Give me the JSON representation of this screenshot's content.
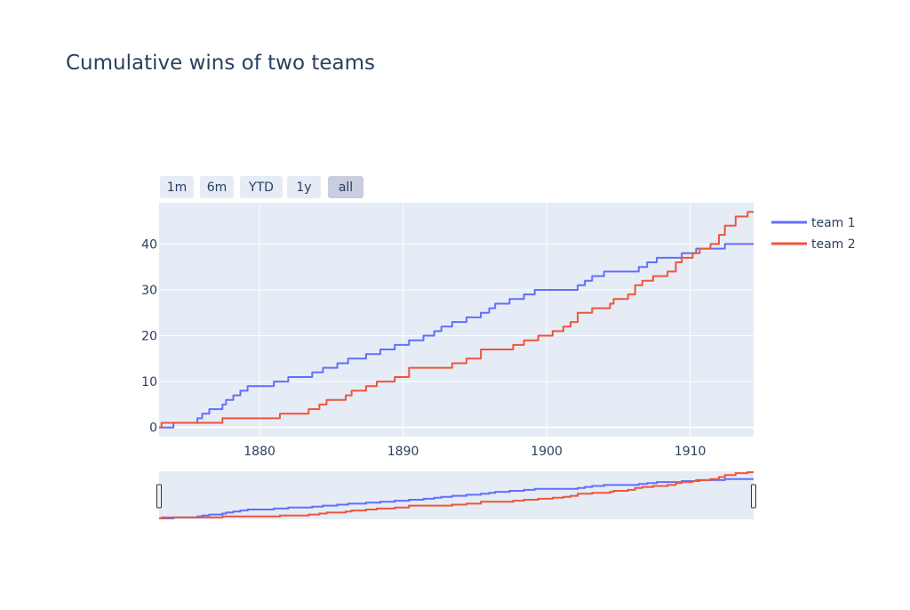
{
  "title": "Cumulative wins of two teams",
  "range_buttons": [
    {
      "label": "1m",
      "active": false
    },
    {
      "label": "6m",
      "active": false
    },
    {
      "label": "YTD",
      "active": false
    },
    {
      "label": "1y",
      "active": false
    },
    {
      "label": "all",
      "active": true
    }
  ],
  "colors": {
    "plot_bg": "#e5ecf6",
    "grid": "#ffffff",
    "text": "#2a3f5f",
    "button_bg": "#e5ecf6",
    "button_active_bg": "#c8cde0"
  },
  "chart_data": {
    "type": "line",
    "line_shape": "step",
    "xaxis": {
      "type": "date",
      "range": [
        "1873-01-01",
        "1914-06-01"
      ],
      "ticks": [
        "1880",
        "1890",
        "1900",
        "1910"
      ]
    },
    "yaxis": {
      "range": [
        -2,
        49
      ],
      "ticks": [
        0,
        10,
        20,
        30,
        40
      ]
    },
    "grid": true,
    "legend_position": "top-right",
    "rangeslider": true,
    "series": [
      {
        "name": "team 1",
        "color": "#636efa",
        "points": [
          [
            "1873-01",
            0
          ],
          [
            "1874-01",
            1
          ],
          [
            "1875-03",
            1
          ],
          [
            "1875-09",
            2
          ],
          [
            "1876-01",
            3
          ],
          [
            "1876-07",
            4
          ],
          [
            "1877-06",
            5
          ],
          [
            "1877-09",
            6
          ],
          [
            "1878-03",
            7
          ],
          [
            "1878-09",
            8
          ],
          [
            "1879-03",
            9
          ],
          [
            "1880-06",
            9
          ],
          [
            "1881-01",
            10
          ],
          [
            "1882-01",
            11
          ],
          [
            "1883-09",
            12
          ],
          [
            "1884-06",
            13
          ],
          [
            "1885-06",
            14
          ],
          [
            "1886-03",
            15
          ],
          [
            "1887-06",
            16
          ],
          [
            "1888-06",
            17
          ],
          [
            "1889-06",
            18
          ],
          [
            "1890-06",
            19
          ],
          [
            "1891-06",
            20
          ],
          [
            "1892-03",
            21
          ],
          [
            "1892-09",
            22
          ],
          [
            "1893-06",
            23
          ],
          [
            "1894-06",
            24
          ],
          [
            "1895-06",
            25
          ],
          [
            "1896-01",
            26
          ],
          [
            "1896-06",
            27
          ],
          [
            "1897-06",
            28
          ],
          [
            "1898-06",
            29
          ],
          [
            "1899-03",
            30
          ],
          [
            "1902-03",
            31
          ],
          [
            "1902-09",
            32
          ],
          [
            "1903-03",
            33
          ],
          [
            "1904-01",
            34
          ],
          [
            "1906-06",
            35
          ],
          [
            "1907-01",
            36
          ],
          [
            "1907-09",
            37
          ],
          [
            "1909-06",
            38
          ],
          [
            "1910-06",
            39
          ],
          [
            "1912-06",
            40
          ],
          [
            "1914-06",
            40
          ]
        ]
      },
      {
        "name": "team 2",
        "color": "#ef553b",
        "points": [
          [
            "1873-01",
            0
          ],
          [
            "1873-03",
            1
          ],
          [
            "1877-06",
            2
          ],
          [
            "1881-06",
            3
          ],
          [
            "1883-06",
            4
          ],
          [
            "1884-03",
            5
          ],
          [
            "1884-09",
            6
          ],
          [
            "1886-01",
            7
          ],
          [
            "1886-06",
            8
          ],
          [
            "1887-06",
            9
          ],
          [
            "1888-03",
            10
          ],
          [
            "1889-06",
            11
          ],
          [
            "1890-06",
            13
          ],
          [
            "1893-06",
            14
          ],
          [
            "1894-06",
            15
          ],
          [
            "1895-06",
            17
          ],
          [
            "1897-09",
            18
          ],
          [
            "1898-06",
            19
          ],
          [
            "1899-06",
            20
          ],
          [
            "1900-06",
            21
          ],
          [
            "1901-03",
            22
          ],
          [
            "1901-09",
            23
          ],
          [
            "1902-03",
            25
          ],
          [
            "1903-03",
            26
          ],
          [
            "1904-06",
            27
          ],
          [
            "1904-09",
            28
          ],
          [
            "1905-09",
            29
          ],
          [
            "1906-03",
            31
          ],
          [
            "1906-09",
            32
          ],
          [
            "1907-06",
            33
          ],
          [
            "1908-06",
            34
          ],
          [
            "1909-01",
            36
          ],
          [
            "1909-06",
            37
          ],
          [
            "1910-03",
            38
          ],
          [
            "1910-09",
            39
          ],
          [
            "1911-06",
            40
          ],
          [
            "1912-01",
            42
          ],
          [
            "1912-06",
            44
          ],
          [
            "1913-03",
            46
          ],
          [
            "1914-01",
            47
          ],
          [
            "1914-06",
            47
          ]
        ]
      }
    ]
  }
}
